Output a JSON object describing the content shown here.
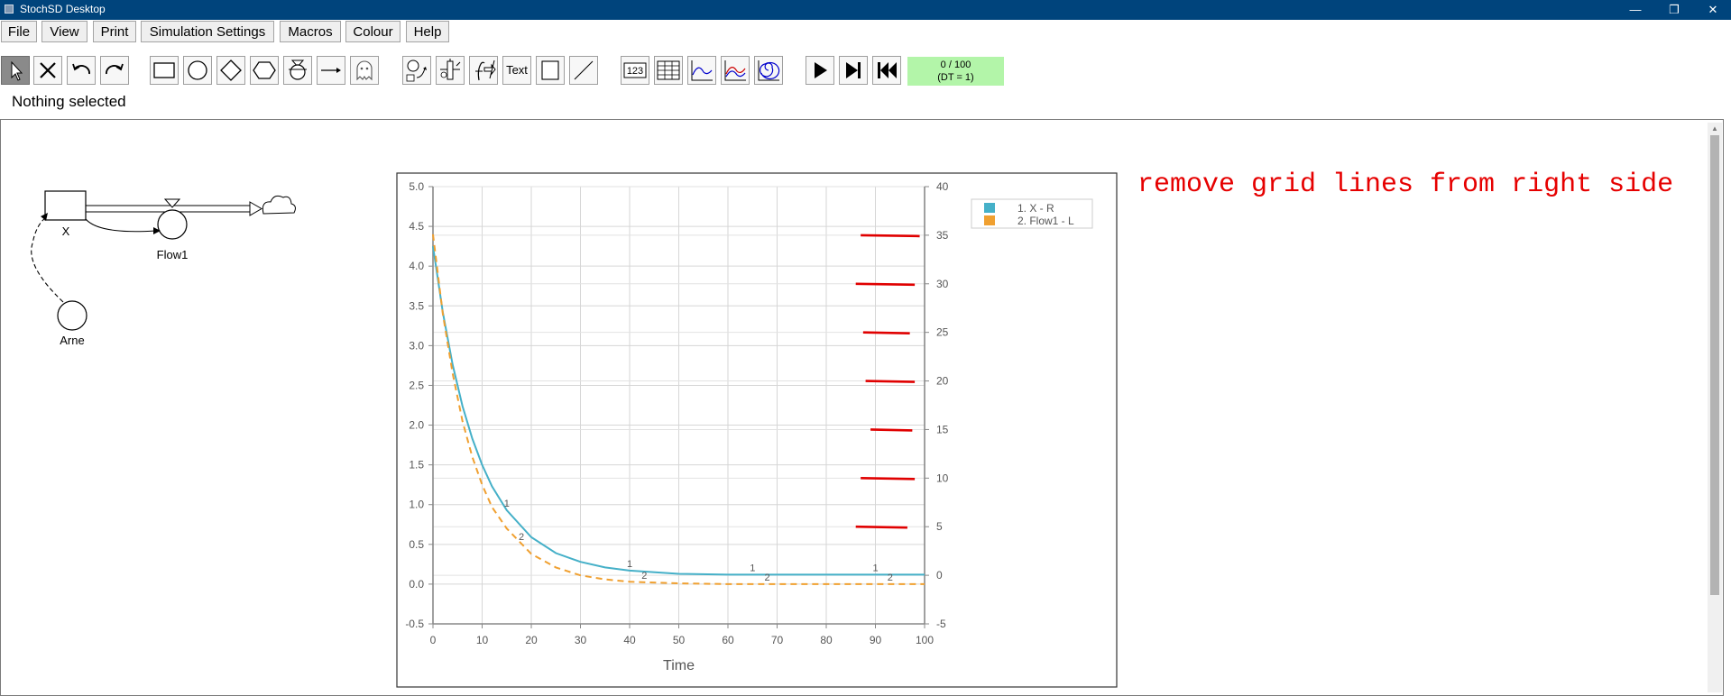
{
  "window": {
    "title": "StochSD Desktop",
    "minimize": "—",
    "restore": "❐",
    "close": "✕"
  },
  "menu": [
    {
      "id": "file",
      "label": "File"
    },
    {
      "id": "view",
      "label": "View"
    },
    {
      "id": "print",
      "label": "Print"
    },
    {
      "id": "simulation-settings",
      "label": "Simulation Settings"
    },
    {
      "id": "macros",
      "label": "Macros"
    },
    {
      "id": "colour",
      "label": "Colour"
    },
    {
      "id": "help",
      "label": "Help"
    }
  ],
  "toolbar": {
    "text_tool_label": "Text",
    "number_tool_label": "123",
    "progress": {
      "steps": "0 / 100",
      "dt": "(DT = 1)"
    }
  },
  "status": "Nothing selected",
  "model": {
    "stock_label": "X",
    "flow_label": "Flow1",
    "aux_label": "Arne"
  },
  "annotation": "remove grid lines from right side",
  "chart_data": {
    "type": "line",
    "xlabel": "Time",
    "xlim": [
      0,
      100
    ],
    "xticks": [
      "0",
      "10",
      "20",
      "30",
      "40",
      "50",
      "60",
      "70",
      "80",
      "90",
      "100"
    ],
    "ylim_left": [
      -0.5,
      5.0
    ],
    "yticks_left": [
      "5.0",
      "4.5",
      "4.0",
      "3.5",
      "3.0",
      "2.5",
      "2.0",
      "1.5",
      "1.0",
      "0.5",
      "0.0",
      "-0.5"
    ],
    "ylim_right": [
      -5,
      40
    ],
    "yticks_right": [
      "40",
      "35",
      "30",
      "25",
      "20",
      "15",
      "10",
      "5",
      "0",
      "-5"
    ],
    "grid": true,
    "legend_position": "top-right, outside plot",
    "series": [
      {
        "name": "1. X - R",
        "marker": "1",
        "axis": "right",
        "color": "#45b0c8",
        "dash": "solid",
        "x": [
          0,
          2,
          4,
          6,
          8,
          10,
          12,
          15,
          20,
          25,
          30,
          35,
          40,
          50,
          60,
          70,
          80,
          90,
          100
        ],
        "y": [
          4.25,
          3.42,
          2.76,
          2.24,
          1.83,
          1.5,
          1.23,
          0.93,
          0.59,
          0.39,
          0.28,
          0.21,
          0.17,
          0.13,
          0.12,
          0.12,
          0.12,
          0.12,
          0.12
        ]
      },
      {
        "name": "2. Flow1 - L",
        "marker": "2",
        "axis": "left",
        "color": "#f0a030",
        "dash": "dashed",
        "x": [
          0,
          2,
          4,
          6,
          8,
          10,
          12,
          15,
          20,
          25,
          30,
          35,
          40,
          50,
          60,
          70,
          80,
          90,
          100
        ],
        "y": [
          4.4,
          3.4,
          2.65,
          2.05,
          1.6,
          1.25,
          0.97,
          0.7,
          0.38,
          0.21,
          0.11,
          0.06,
          0.03,
          0.01,
          0.0,
          0.0,
          0.0,
          0.0,
          0.0
        ]
      }
    ],
    "markers": [
      {
        "series": 0,
        "x": [
          15,
          40,
          65,
          90
        ]
      },
      {
        "series": 1,
        "x": [
          18,
          43,
          68,
          93
        ]
      }
    ],
    "red_marks": [
      {
        "right_value": 35,
        "x1": 87,
        "x2": 99
      },
      {
        "right_value": 30,
        "x1": 86,
        "x2": 98
      },
      {
        "right_value": 25,
        "x1": 87.5,
        "x2": 97
      },
      {
        "right_value": 20,
        "x1": 88,
        "x2": 98
      },
      {
        "right_value": 15,
        "x1": 89,
        "x2": 97.5
      },
      {
        "right_value": 10,
        "x1": 87,
        "x2": 98
      },
      {
        "right_value": 5,
        "x1": 86,
        "x2": 96.5
      }
    ]
  }
}
